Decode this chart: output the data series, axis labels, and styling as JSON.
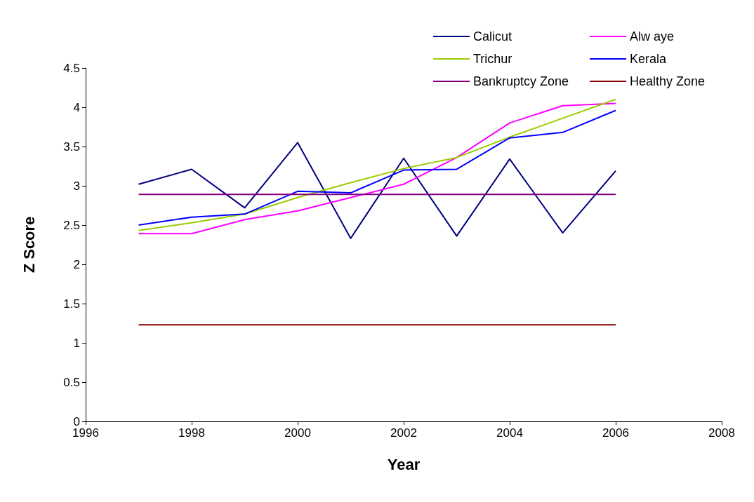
{
  "chart_data": {
    "type": "line",
    "xlabel": "Year",
    "ylabel": "Z Score",
    "x": [
      1997,
      1998,
      1999,
      2000,
      2001,
      2002,
      2003,
      2004,
      2005,
      2006
    ],
    "xlim": [
      1996,
      2008
    ],
    "xticks": [
      1996,
      1998,
      2000,
      2002,
      2004,
      2006,
      2008
    ],
    "ylim": [
      0,
      4.5
    ],
    "yticks": [
      0,
      0.5,
      1,
      1.5,
      2,
      2.5,
      3,
      3.5,
      4,
      4.5
    ],
    "grid": false,
    "legend": "top right",
    "marker": "none",
    "line_style": "solid",
    "series": [
      {
        "name": "Calicut",
        "color": "#000080",
        "values": [
          3.02,
          3.21,
          2.72,
          3.55,
          2.33,
          3.35,
          2.36,
          3.34,
          2.4,
          3.19
        ]
      },
      {
        "name": "Alw aye",
        "color": "#ff00ff",
        "values": [
          2.39,
          2.39,
          2.57,
          2.68,
          2.85,
          3.02,
          3.36,
          3.8,
          4.02,
          4.05
        ]
      },
      {
        "name": "Trichur",
        "color": "#99cc00",
        "values": [
          2.43,
          2.53,
          2.64,
          2.85,
          3.04,
          3.22,
          3.36,
          3.62,
          3.86,
          4.1
        ]
      },
      {
        "name": "Kerala",
        "color": "#0000ff",
        "values": [
          2.5,
          2.6,
          2.64,
          2.93,
          2.91,
          3.2,
          3.21,
          3.61,
          3.68,
          3.96
        ]
      },
      {
        "name": "Bankruptcy Zone",
        "color": "#800080",
        "values": [
          2.89,
          2.89,
          2.89,
          2.89,
          2.89,
          2.89,
          2.89,
          2.89,
          2.89,
          2.89
        ]
      },
      {
        "name": "Healthy Zone",
        "color": "#800000",
        "values": [
          1.23,
          1.23,
          1.23,
          1.23,
          1.23,
          1.23,
          1.23,
          1.23,
          1.23,
          1.23
        ]
      }
    ]
  }
}
